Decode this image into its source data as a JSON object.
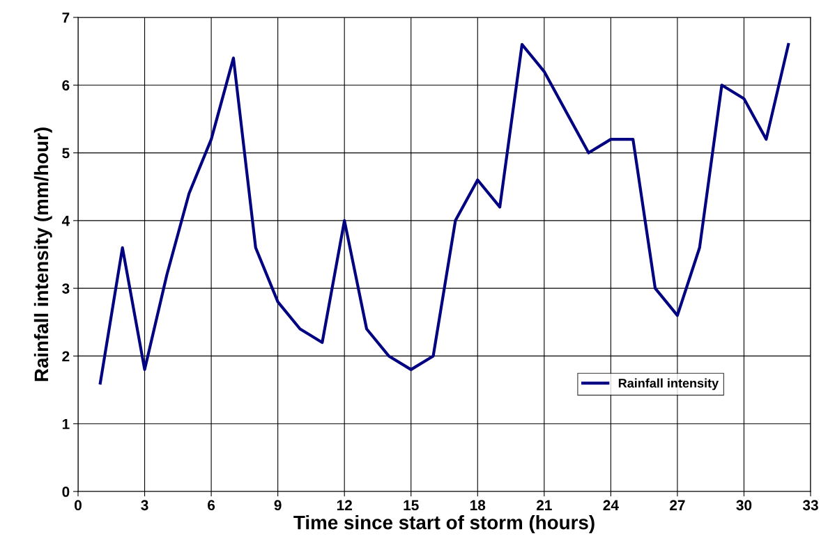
{
  "chart_data": {
    "type": "line",
    "xlabel": "Time since start of storm (hours)",
    "ylabel": "Rainfall intensity (mm/hour)",
    "x": [
      1,
      2,
      3,
      4,
      5,
      6,
      7,
      8,
      9,
      10,
      11,
      12,
      13,
      14,
      15,
      16,
      17,
      18,
      19,
      20,
      21,
      22,
      23,
      24,
      25,
      26,
      27,
      28,
      29,
      30,
      31,
      32
    ],
    "series": [
      {
        "name": "Rainfall intensity",
        "color": "#000080",
        "values": [
          1.6,
          3.6,
          1.8,
          3.2,
          4.4,
          5.2,
          6.4,
          3.6,
          2.8,
          2.4,
          2.2,
          4.0,
          2.4,
          2.0,
          1.8,
          2.0,
          4.0,
          4.6,
          4.2,
          6.6,
          6.2,
          5.6,
          5.0,
          5.2,
          5.2,
          3.0,
          2.6,
          3.6,
          6.0,
          5.8,
          5.2,
          6.6
        ]
      }
    ],
    "xlim": [
      0,
      33
    ],
    "xticks": [
      0,
      3,
      6,
      9,
      12,
      15,
      18,
      21,
      24,
      27,
      30,
      33
    ],
    "ylim": [
      0,
      7
    ],
    "yticks": [
      0,
      1,
      2,
      3,
      4,
      5,
      6,
      7
    ],
    "grid": true,
    "legend": "lower right",
    "marker": "none",
    "line_style": "solid"
  }
}
